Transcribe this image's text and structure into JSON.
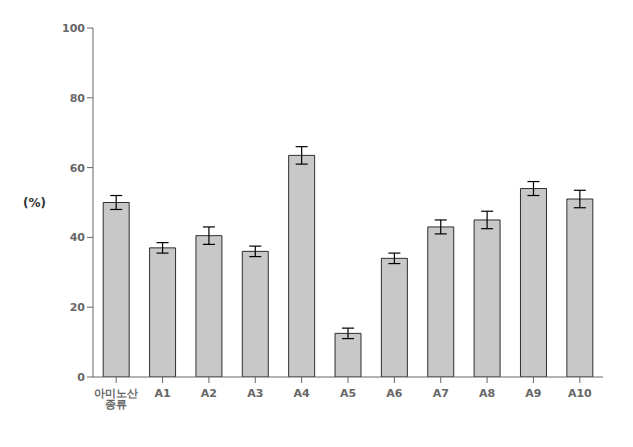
{
  "chart_data": {
    "type": "bar",
    "ylabel": "(%)",
    "categories": [
      "아미노산 종류",
      "A1",
      "A2",
      "A3",
      "A4",
      "A5",
      "A6",
      "A7",
      "A8",
      "A9",
      "A10"
    ],
    "values": [
      50.0,
      37.0,
      40.5,
      36.0,
      63.5,
      12.5,
      34.0,
      43.0,
      45.0,
      54.0,
      51.0
    ],
    "errors": [
      2.0,
      1.5,
      2.5,
      1.5,
      2.5,
      1.5,
      1.5,
      2.0,
      2.5,
      2.0,
      2.5
    ],
    "color": "#c8c8c8",
    "ylim": [
      0,
      100
    ],
    "yticks": [
      0,
      20,
      40,
      60,
      80,
      100
    ],
    "grid": false
  }
}
